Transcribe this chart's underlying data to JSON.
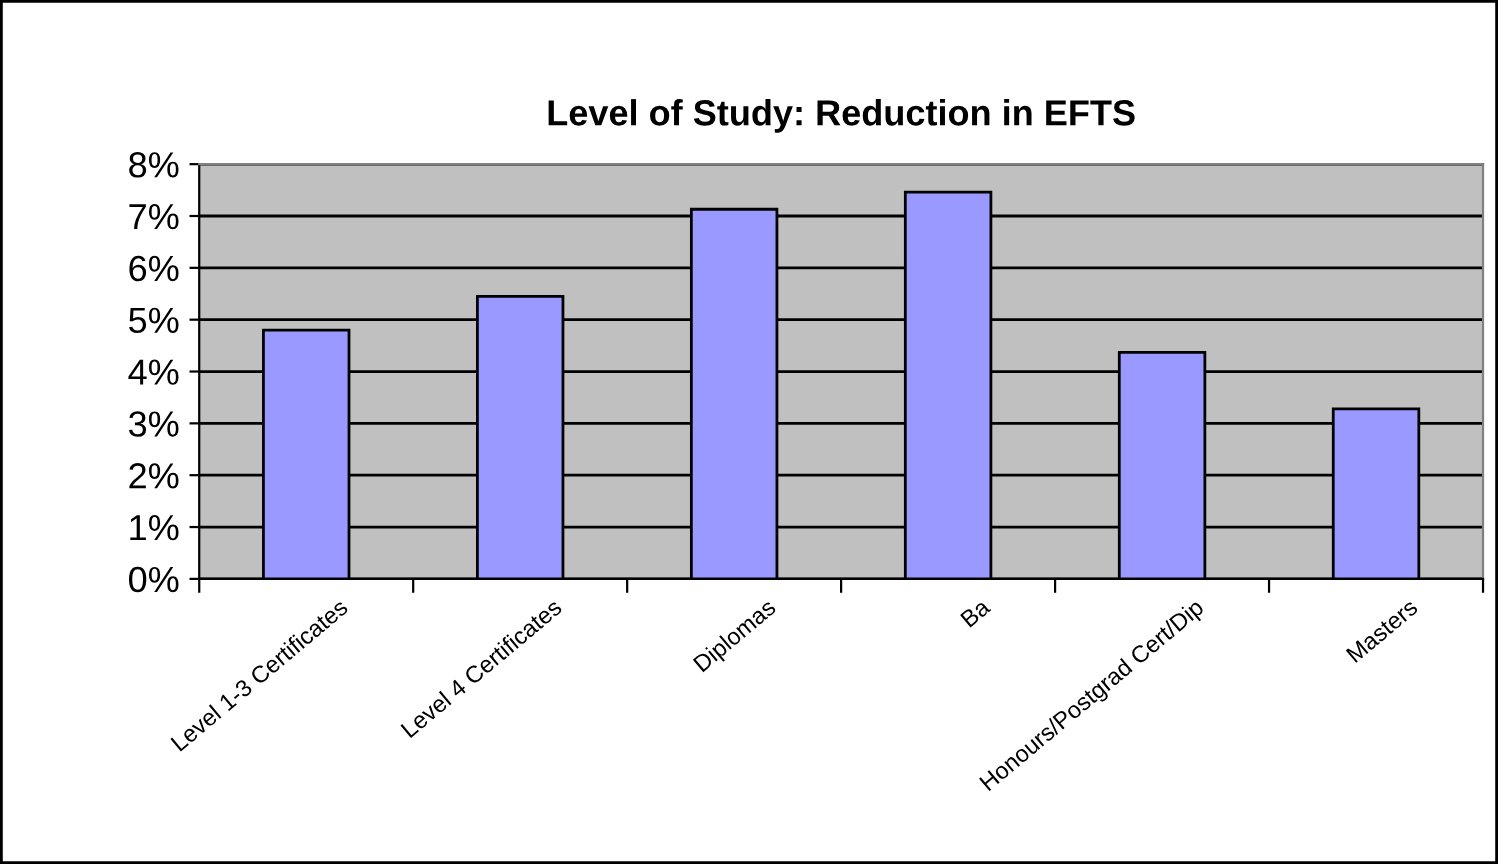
{
  "chart_data": {
    "type": "bar",
    "title": "Level of Study: Reduction in EFTS",
    "categories": [
      "Level 1-3 Certificates",
      "Level 4 Certificates",
      "Diplomas",
      "Ba",
      "Honours/Postgrad Cert/Dip",
      "Masters"
    ],
    "values": [
      4.8,
      5.45,
      7.13,
      7.46,
      4.37,
      3.28
    ],
    "color": "#9999ff",
    "ylim": [
      0,
      8
    ],
    "yticks": [
      {
        "value": 0,
        "label": "0%"
      },
      {
        "value": 1,
        "label": "1%"
      },
      {
        "value": 2,
        "label": "2%"
      },
      {
        "value": 3,
        "label": "3%"
      },
      {
        "value": 4,
        "label": "4%"
      },
      {
        "value": 5,
        "label": "5%"
      },
      {
        "value": 6,
        "label": "6%"
      },
      {
        "value": 7,
        "label": "7%"
      },
      {
        "value": 8,
        "label": "8%"
      }
    ],
    "grid": "y"
  }
}
